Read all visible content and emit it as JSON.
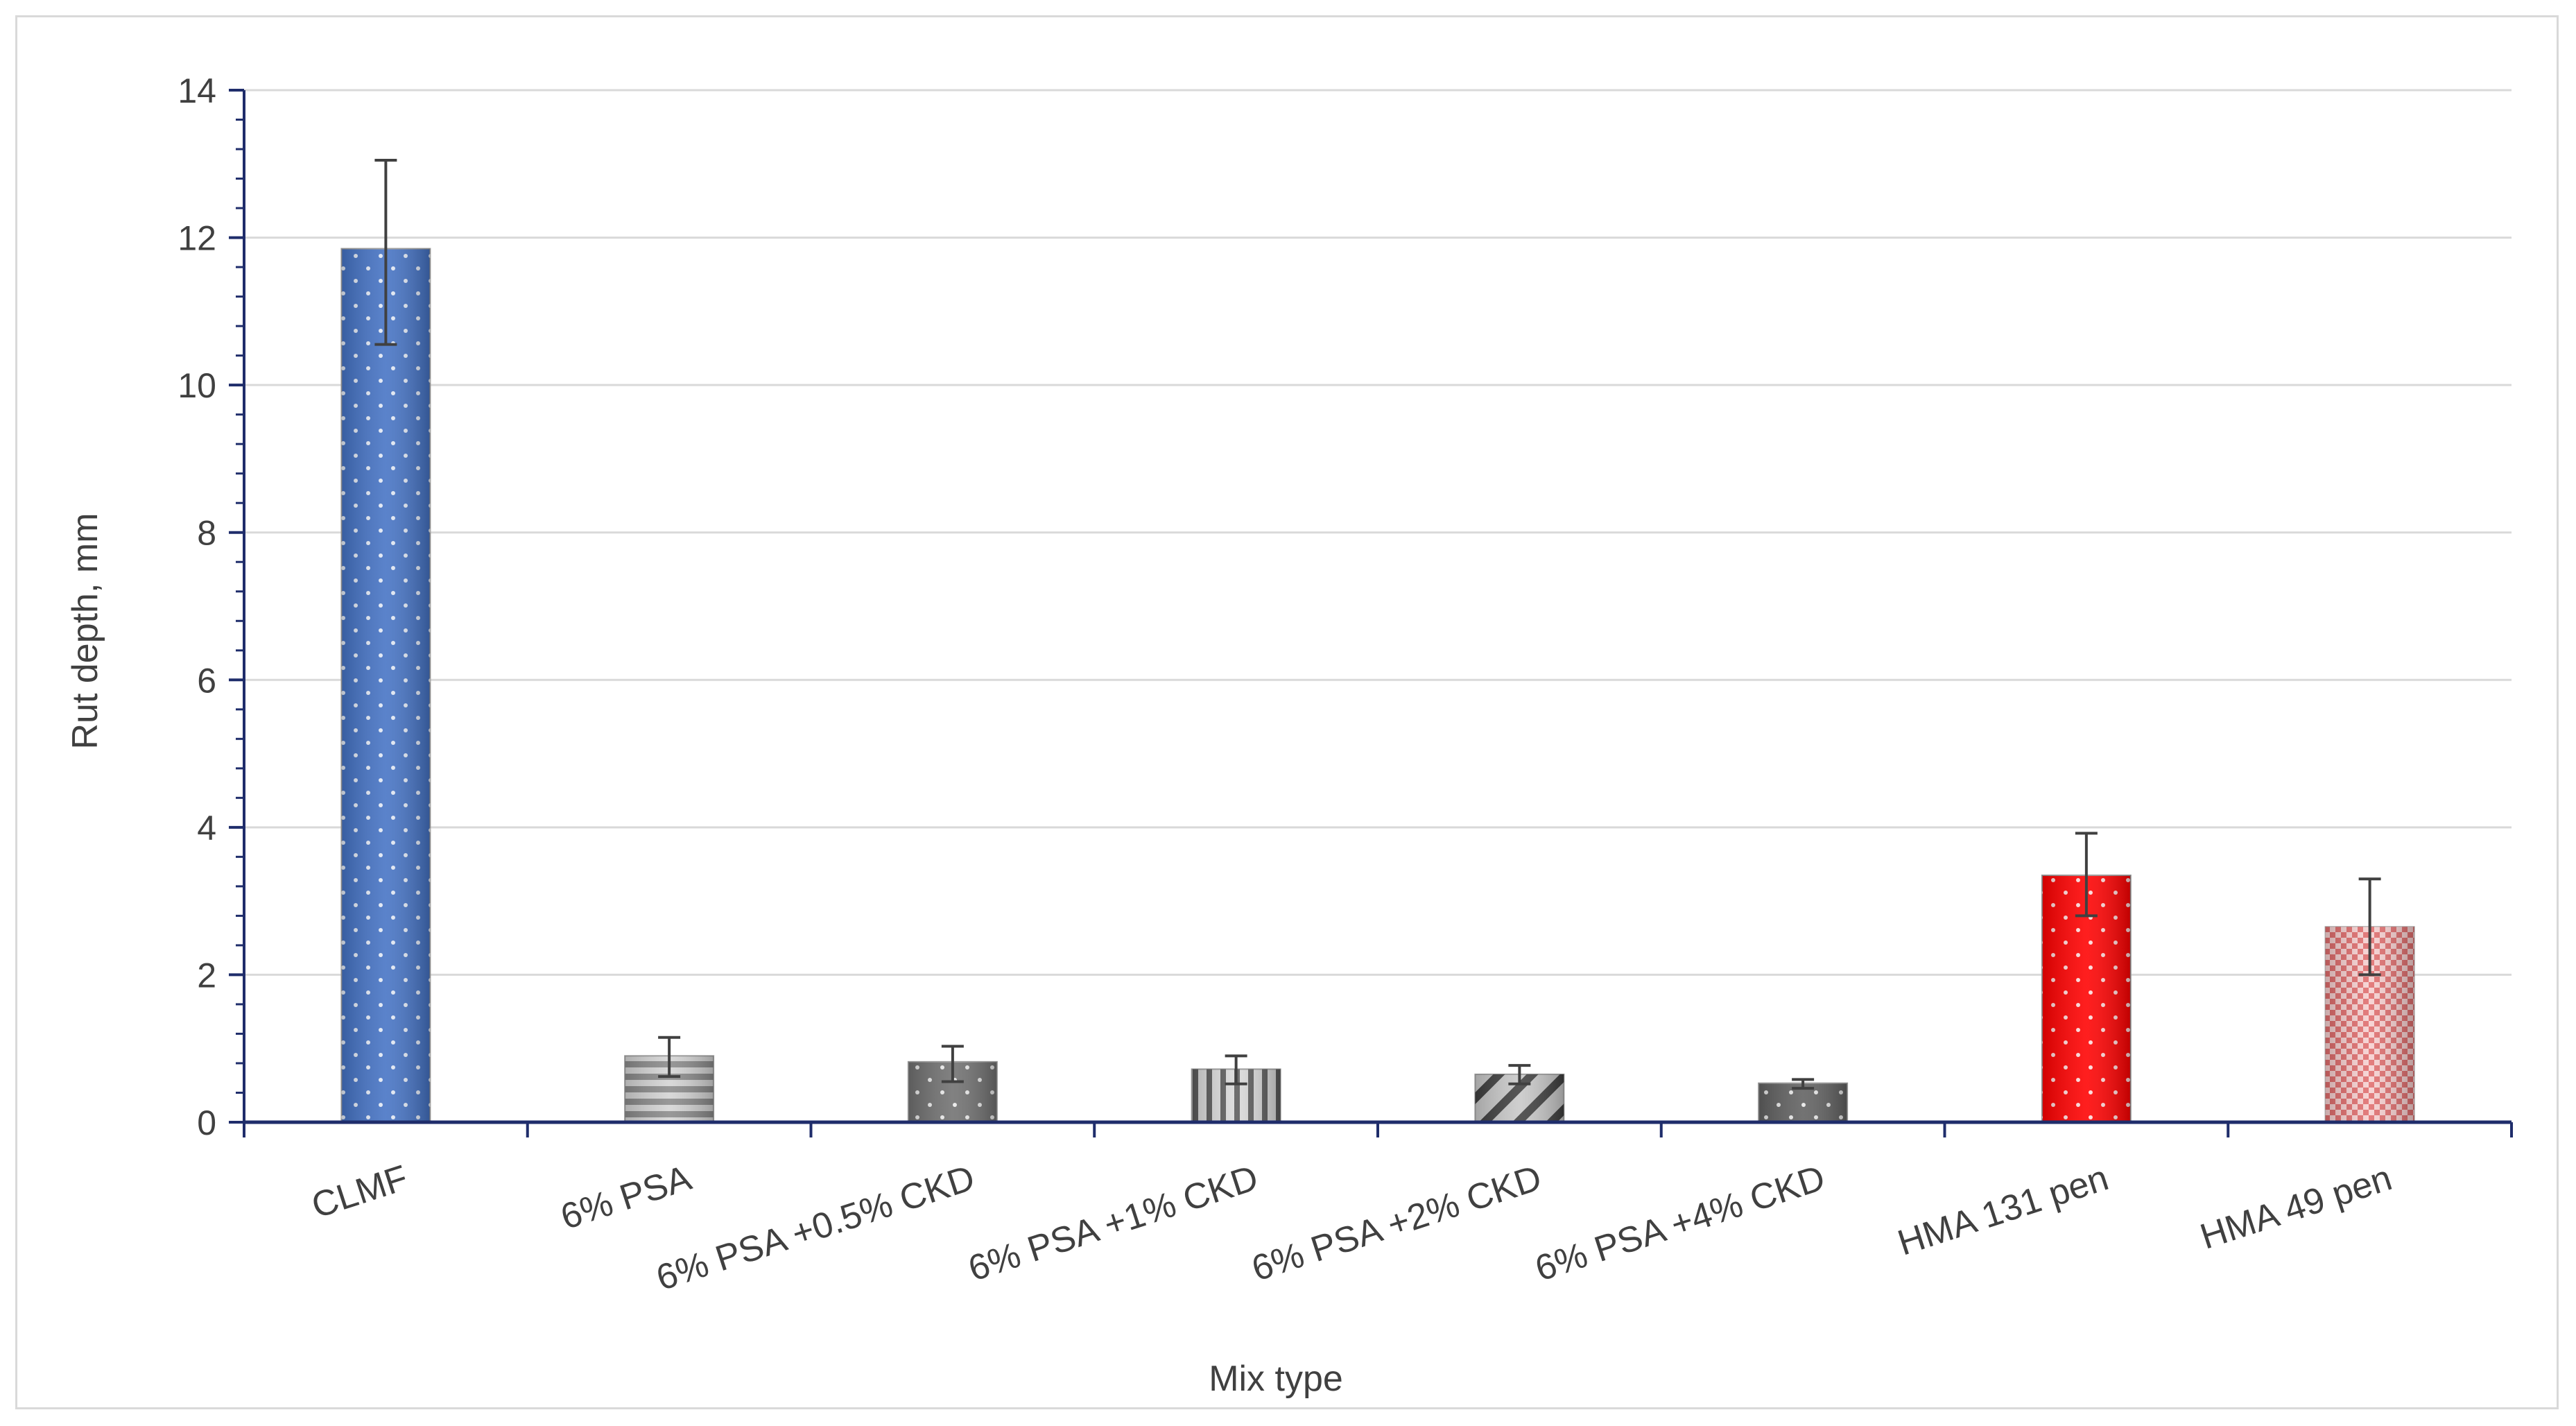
{
  "chart_data": {
    "type": "bar",
    "title": "",
    "xlabel": "Mix type",
    "ylabel": "Rut depth, mm",
    "ylim": [
      0,
      14
    ],
    "yticks": [
      0,
      2,
      4,
      6,
      8,
      10,
      12,
      14
    ],
    "grid": true,
    "legend": "none",
    "categories": [
      "CLMF",
      "6% PSA",
      "6% PSA +0.5% CKD",
      "6% PSA +1% CKD",
      "6% PSA +2% CKD",
      "6% PSA +4% CKD",
      "HMA 131 pen",
      "HMA 49 pen"
    ],
    "values": [
      11.85,
      0.9,
      0.82,
      0.72,
      0.65,
      0.53,
      3.35,
      2.65
    ],
    "error_low": [
      10.55,
      0.62,
      0.55,
      0.52,
      0.52,
      0.46,
      2.8,
      2.0
    ],
    "error_high": [
      13.05,
      1.15,
      1.03,
      0.9,
      0.77,
      0.58,
      3.92,
      3.3
    ],
    "bar_colors": [
      "#4472c4",
      "#d4d4d4",
      "#707070",
      "#d9d9d9",
      "#c8c8c8",
      "#606060",
      "#ff0000",
      "#f0b4b4"
    ],
    "bar_patterns": [
      "dots",
      "horizontal-lines",
      "dots",
      "vertical-lines",
      "diagonal",
      "dots",
      "dots",
      "grid"
    ]
  }
}
